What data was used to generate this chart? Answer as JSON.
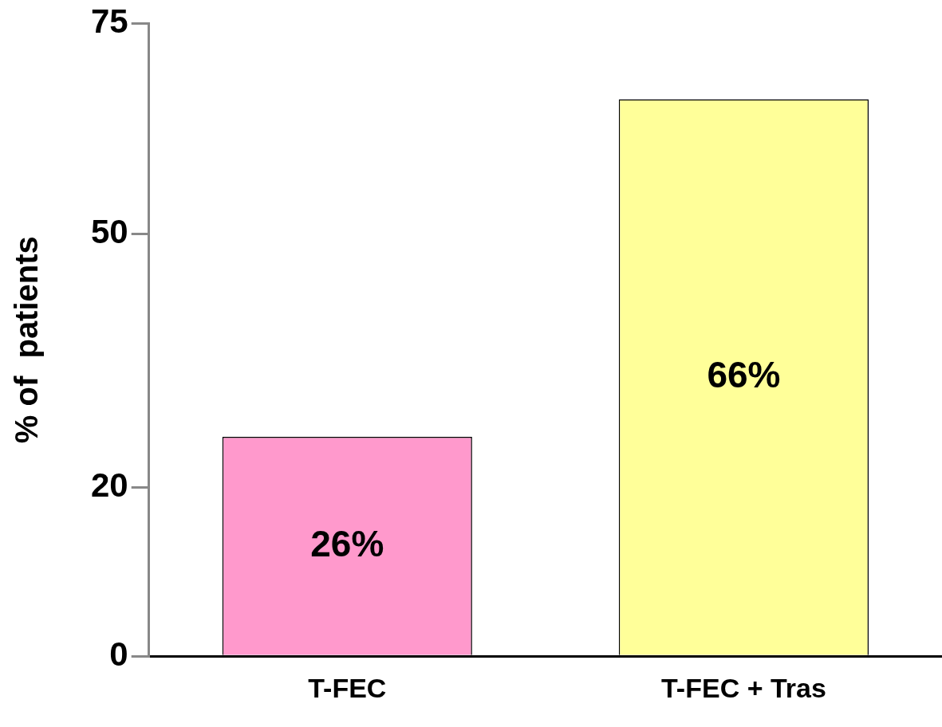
{
  "chart_data": {
    "type": "bar",
    "ylabel": "% of  patients",
    "categories": [
      "T-FEC",
      "T-FEC + Tras"
    ],
    "values": [
      26,
      66
    ],
    "colors": [
      "#ff99cc",
      "#ffff99"
    ],
    "value_labels": [
      "26%",
      "66%"
    ],
    "ylim": [
      0,
      75
    ],
    "yticks": [
      0,
      20,
      50,
      75
    ],
    "grid": false,
    "legend": false
  }
}
